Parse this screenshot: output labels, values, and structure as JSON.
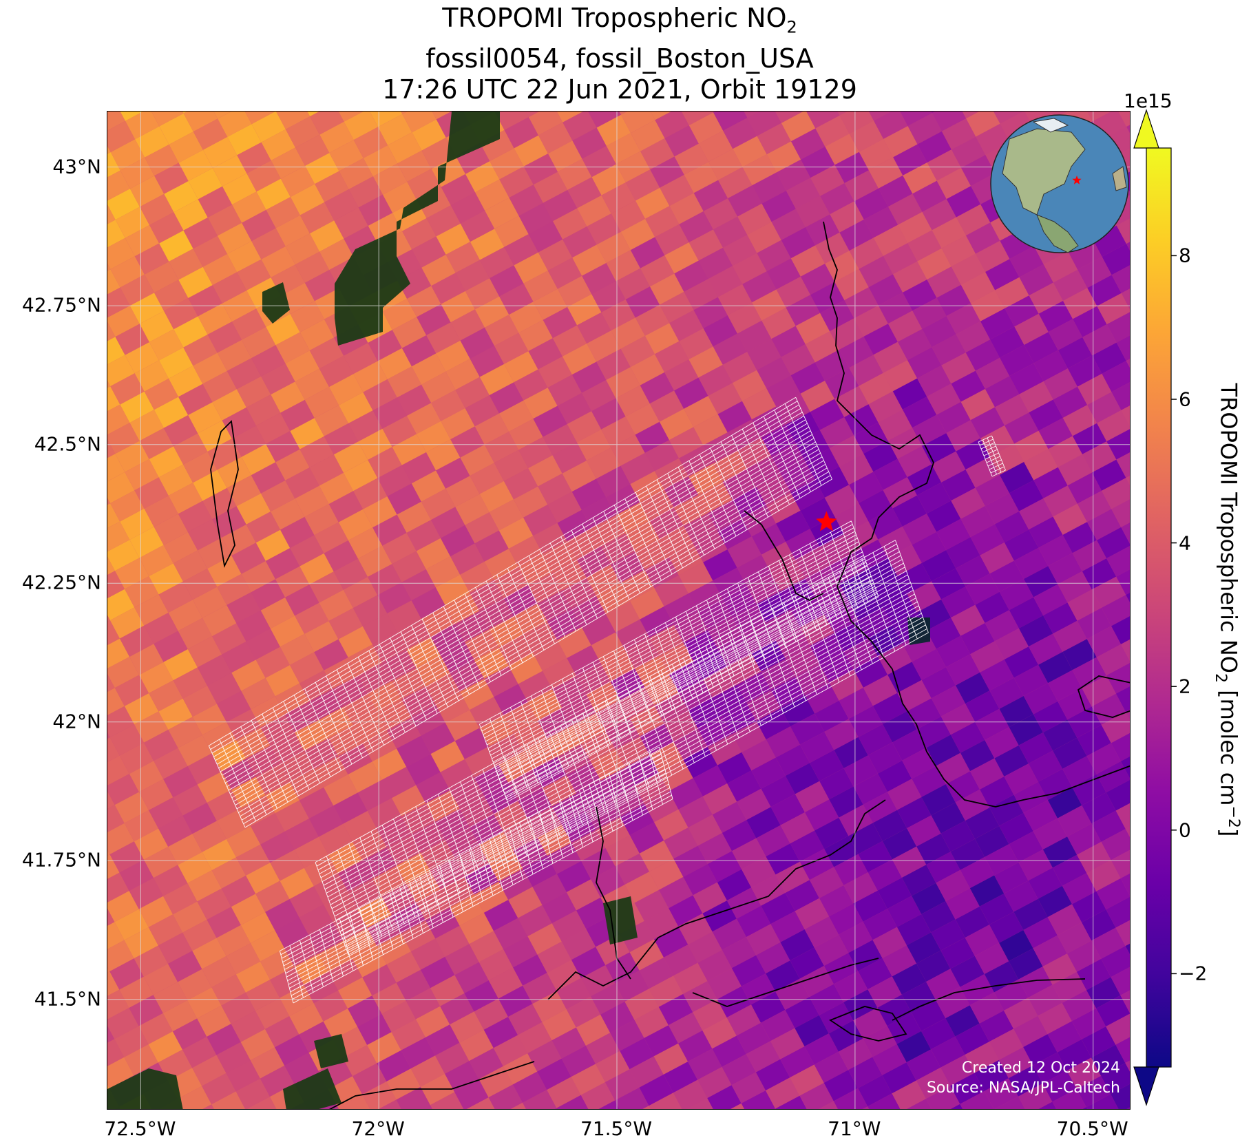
{
  "title": {
    "line1_prefix": "TROPOMI Tropospheric NO",
    "line1_sub": "2",
    "line2": "fossil0054, fossil_Boston_USA",
    "line3": "17:26 UTC 22 Jun 2021, Orbit 19129"
  },
  "map": {
    "lat_labels": [
      "43°N",
      "42.75°N",
      "42.5°N",
      "42.25°N",
      "42°N",
      "41.75°N",
      "41.5°N"
    ],
    "lat_values": [
      43.0,
      42.75,
      42.5,
      42.25,
      42.0,
      41.75,
      41.5
    ],
    "lon_labels": [
      "72.5°W",
      "72°W",
      "71.5°W",
      "71°W",
      "70.5°W"
    ],
    "lon_values": [
      -72.5,
      -72.0,
      -71.5,
      -71.0,
      -70.5
    ],
    "lon_range": [
      -72.57,
      -70.42
    ],
    "lat_range": [
      41.3,
      43.1
    ],
    "site_marker": {
      "lat": 42.36,
      "lon": -71.06,
      "color": "#ff0000",
      "symbol": "star-icon"
    },
    "grid": true,
    "inset_globe": {
      "site_color": "#ff0000"
    }
  },
  "colorbar": {
    "label_prefix": "TROPOMI Tropospheric NO",
    "label_sub": "2",
    "label_mid": " [molec cm",
    "label_sup": "−2",
    "label_end": "]",
    "exponent": "1e15",
    "ticks": [
      "8",
      "6",
      "4",
      "2",
      "0",
      "−2"
    ],
    "tick_values": [
      8,
      6,
      4,
      2,
      0,
      -2
    ],
    "range": [
      -3.3,
      9.5
    ],
    "colormap": "plasma",
    "extend": "both"
  },
  "credits": {
    "line1": "Created 12 Oct 2024",
    "line2": "Source: NASA/JPL-Caltech"
  }
}
